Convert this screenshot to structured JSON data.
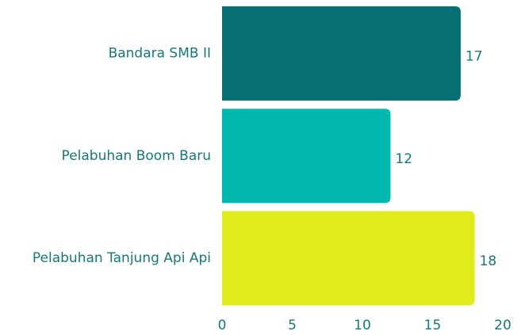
{
  "chart_data": {
    "type": "bar",
    "orientation": "horizontal",
    "categories": [
      "Bandara SMB II",
      "Pelabuhan Boom Baru",
      "Pelabuhan Tanjung Api Api"
    ],
    "values": [
      17,
      12,
      18
    ],
    "colors": [
      "#066f73",
      "#00b8ad",
      "#e0eb1a"
    ],
    "xlim": [
      0,
      20
    ],
    "xticks": [
      0,
      5,
      10,
      15,
      20
    ],
    "grid": false
  }
}
